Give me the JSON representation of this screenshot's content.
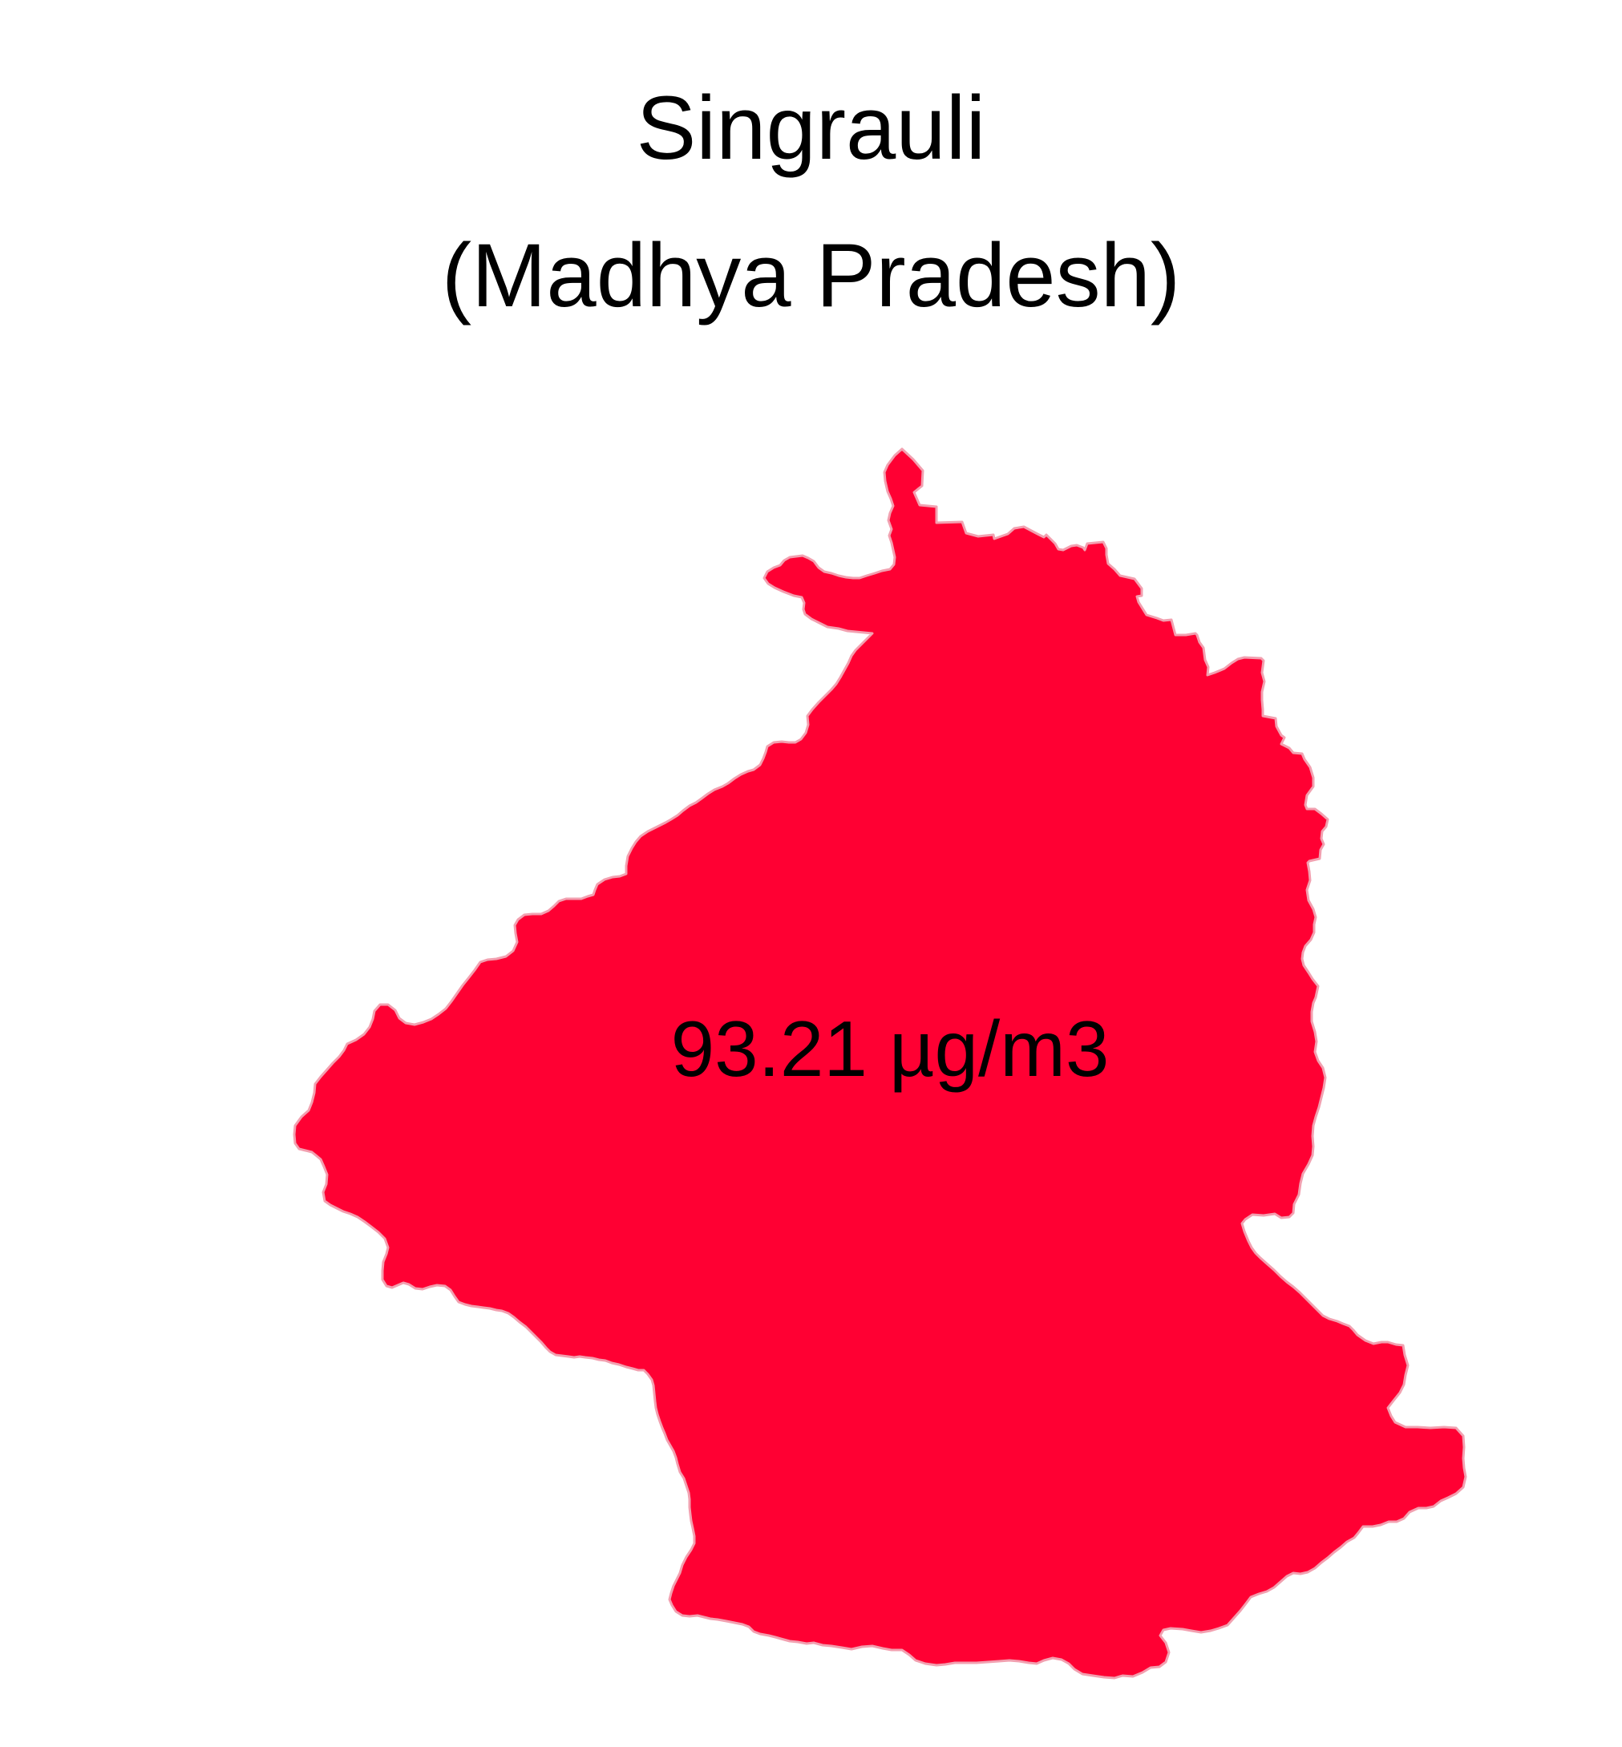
{
  "title": {
    "line1": "Singrauli",
    "line2": "(Madhya Pradesh)"
  },
  "map": {
    "district": "Singrauli",
    "state": "Madhya Pradesh",
    "value_label": "93.21 µg/m3",
    "value": 93.21,
    "unit": "µg/m3",
    "fill_color": "#ff0033",
    "border_color": "#f2a0b0",
    "background_color": "#ffffff"
  }
}
